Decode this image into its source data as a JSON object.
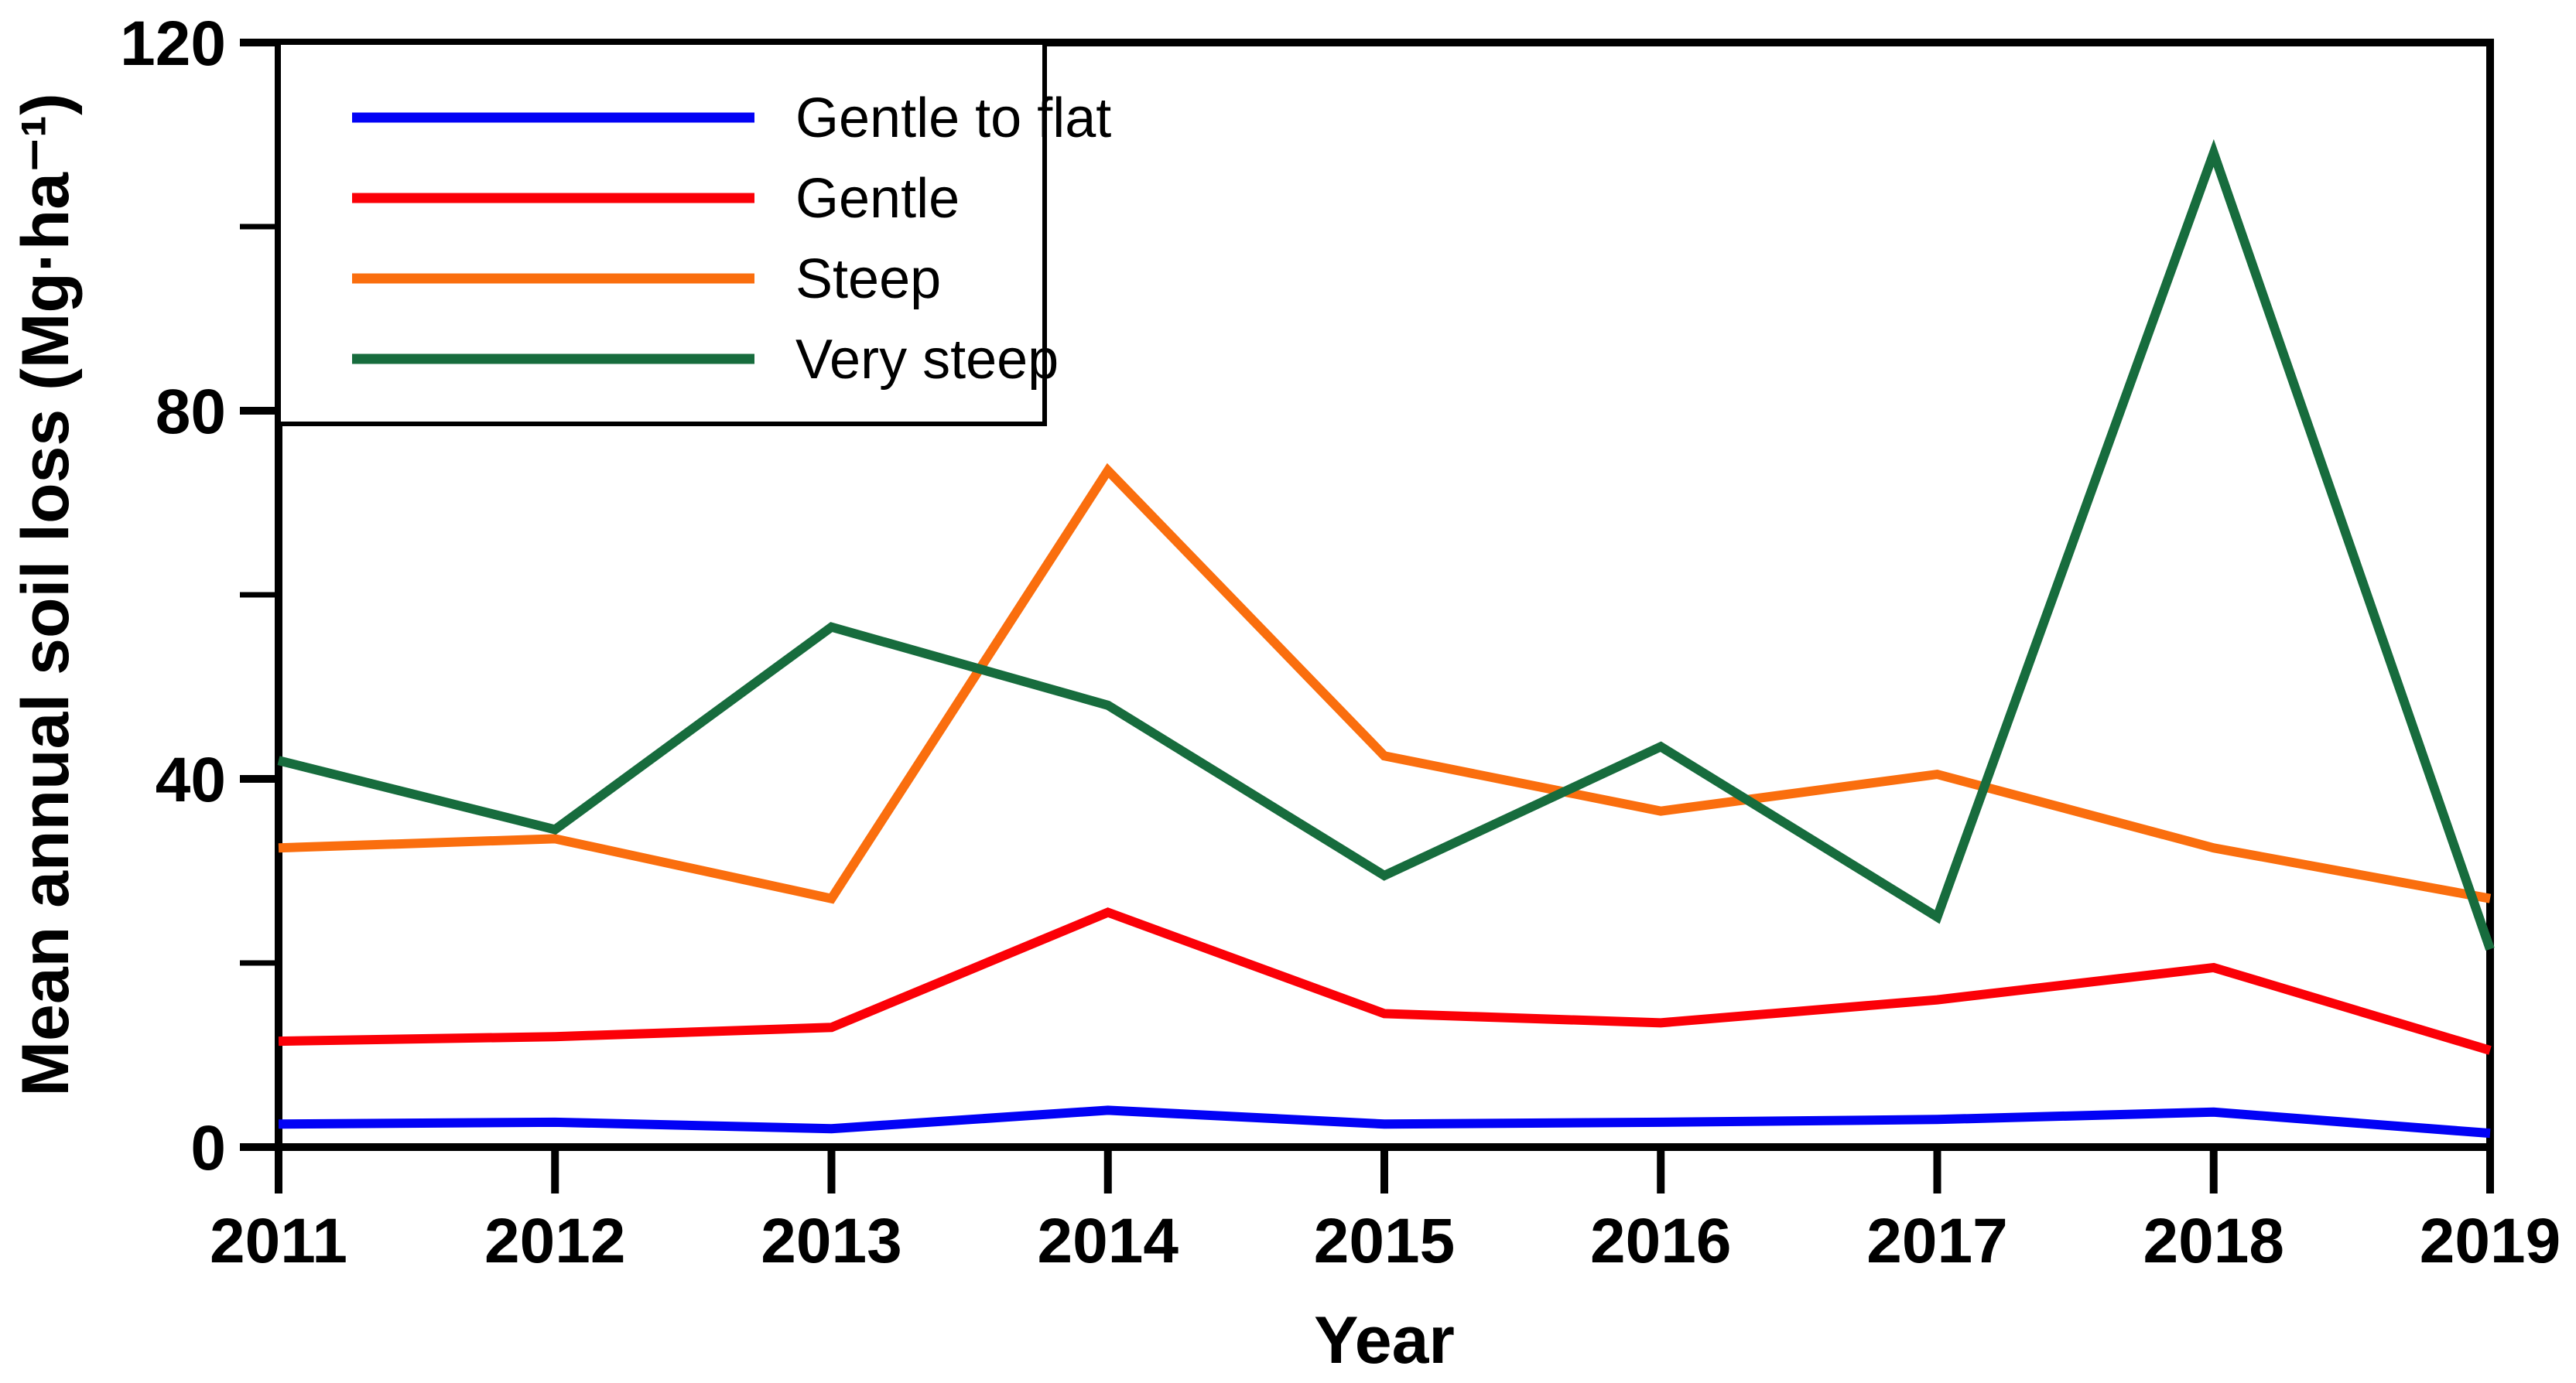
{
  "chart_data": {
    "type": "line",
    "title": "",
    "xlabel": "Year",
    "ylabel": "Mean annual soil loss (Mg·ha⁻¹)",
    "x": [
      2011,
      2012,
      2013,
      2014,
      2015,
      2016,
      2017,
      2018,
      2019
    ],
    "xlim": [
      2011,
      2019
    ],
    "ylim": [
      0,
      120
    ],
    "yticks_major": [
      0,
      40,
      80,
      120
    ],
    "yticks_minor": [
      20,
      60,
      100
    ],
    "grid": false,
    "legend_position": "top-left-inside",
    "frame_color": "#000000",
    "background_color": "#ffffff",
    "series": [
      {
        "name": "Gentle to flat",
        "color": "#0202f5",
        "values": [
          2.5,
          2.7,
          2.0,
          4.0,
          2.5,
          2.7,
          3.0,
          3.8,
          1.5
        ]
      },
      {
        "name": "Gentle",
        "color": "#fb0007",
        "values": [
          11.5,
          12.0,
          13.0,
          25.5,
          14.5,
          13.5,
          16.0,
          19.5,
          10.5
        ]
      },
      {
        "name": "Steep",
        "color": "#fa6e0e",
        "values": [
          32.5,
          33.5,
          27.0,
          73.5,
          42.5,
          36.5,
          40.5,
          32.5,
          27.0
        ]
      },
      {
        "name": "Very steep",
        "color": "#176c3d",
        "values": [
          42.0,
          34.5,
          56.5,
          48.0,
          29.5,
          43.5,
          25.0,
          108.0,
          21.5
        ]
      }
    ]
  }
}
